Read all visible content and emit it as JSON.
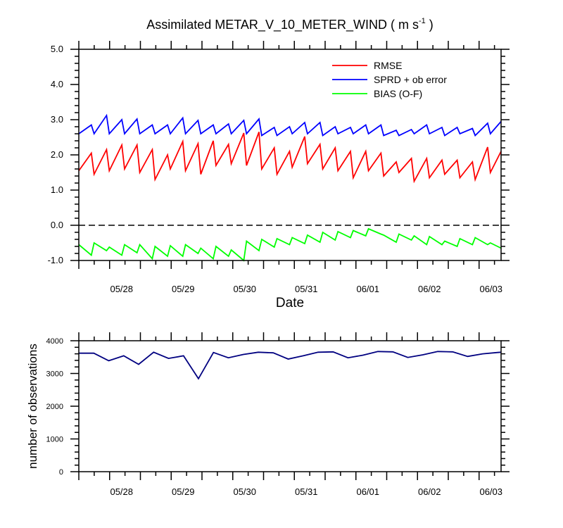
{
  "title": {
    "main": "Assimilated METAR_V_10_METER_WIND ( m s",
    "sup": "-1",
    "close": " )"
  },
  "colors": {
    "rmse": "#ff0000",
    "sprd": "#0000ff",
    "bias": "#00ff00",
    "nobs": "#000080",
    "zero_line": "#000000"
  },
  "chart_data": [
    {
      "type": "line",
      "xlabel": "Date",
      "ylabel": "",
      "ylim": [
        -1.0,
        5.0
      ],
      "xlim": [
        0,
        48
      ],
      "ytick_labels": [
        "5.0",
        "4.0",
        "3.0",
        "2.0",
        "1.0",
        "0.0",
        "-1.0"
      ],
      "ytick_values": [
        5,
        4,
        3,
        2,
        1,
        0,
        -1
      ],
      "xtick_labels": [
        "05/28",
        "05/29",
        "05/30",
        "05/31",
        "06/01",
        "06/02",
        "06/03"
      ],
      "xtick_values": [
        5.5,
        12.5,
        19.5,
        26.5,
        33.5,
        40.5,
        47.5
      ],
      "reference_line": 0.0,
      "legend": [
        "RMSE",
        "SPRD + ob error",
        "BIAS (O-F)"
      ],
      "legend_position": "top-right",
      "series": [
        {
          "name": "RMSE",
          "color_key": "rmse",
          "sawtooth": true,
          "start": [
            1.55,
            1.45,
            1.55,
            1.6,
            1.5,
            1.3,
            1.6,
            1.55,
            1.45,
            1.7,
            1.75,
            1.7,
            1.6,
            1.45,
            1.65,
            1.75,
            1.6,
            1.55,
            1.35,
            1.55,
            1.4,
            1.5,
            1.25,
            1.35,
            1.45,
            1.35,
            1.3,
            1.5
          ],
          "end": [
            2.05,
            2.15,
            2.28,
            2.28,
            2.15,
            2.0,
            2.38,
            2.32,
            2.4,
            2.3,
            2.62,
            2.65,
            2.2,
            2.1,
            2.52,
            2.3,
            2.2,
            2.1,
            2.1,
            2.05,
            1.8,
            1.9,
            1.9,
            1.85,
            1.85,
            1.8,
            2.22,
            2.1
          ]
        },
        {
          "name": "SPRD + ob error",
          "color_key": "sprd",
          "sawtooth": true,
          "start": [
            2.6,
            2.6,
            2.6,
            2.6,
            2.6,
            2.6,
            2.6,
            2.6,
            2.6,
            2.6,
            2.6,
            2.6,
            2.55,
            2.55,
            2.6,
            2.6,
            2.55,
            2.6,
            2.6,
            2.6,
            2.55,
            2.55,
            2.6,
            2.6,
            2.55,
            2.6,
            2.55,
            2.6
          ],
          "end": [
            2.85,
            3.12,
            3.0,
            3.02,
            2.85,
            2.85,
            3.05,
            2.98,
            2.85,
            2.88,
            2.98,
            3.02,
            2.78,
            2.8,
            2.92,
            2.92,
            2.8,
            2.78,
            2.85,
            2.85,
            2.7,
            2.72,
            2.85,
            2.78,
            2.78,
            2.75,
            2.9,
            2.95
          ]
        },
        {
          "name": "BIAS (O-F)",
          "color_key": "bias",
          "sawtooth": true,
          "start": [
            -0.55,
            -0.5,
            -0.62,
            -0.55,
            -0.55,
            -0.6,
            -0.58,
            -0.55,
            -0.65,
            -0.6,
            -0.7,
            -0.45,
            -0.4,
            -0.38,
            -0.35,
            -0.28,
            -0.2,
            -0.18,
            -0.15,
            -0.1,
            -0.28,
            -0.25,
            -0.3,
            -0.32,
            -0.45,
            -0.38,
            -0.35,
            -0.5
          ],
          "end": [
            -0.85,
            -0.72,
            -0.85,
            -0.78,
            -0.95,
            -0.88,
            -0.88,
            -0.8,
            -0.95,
            -0.88,
            -1.0,
            -0.72,
            -0.62,
            -0.55,
            -0.52,
            -0.48,
            -0.42,
            -0.35,
            -0.3,
            -0.25,
            -0.48,
            -0.42,
            -0.55,
            -0.55,
            -0.6,
            -0.55,
            -0.55,
            -0.65
          ]
        }
      ]
    },
    {
      "type": "line",
      "xlabel": "",
      "ylabel": "number of observations",
      "ylim": [
        0,
        4000
      ],
      "xlim": [
        0,
        48
      ],
      "ytick_labels": [
        "4000",
        "3000",
        "2000",
        "1000",
        "0"
      ],
      "ytick_values": [
        4000,
        3000,
        2000,
        1000,
        0
      ],
      "xtick_labels": [
        "05/28",
        "05/29",
        "05/30",
        "05/31",
        "06/01",
        "06/02",
        "06/03"
      ],
      "xtick_values": [
        5.5,
        12.5,
        19.5,
        26.5,
        33.5,
        40.5,
        47.5
      ],
      "series": [
        {
          "name": "number of observations",
          "color_key": "nobs",
          "x": [
            0,
            1.7,
            3.4,
            5.1,
            6.8,
            8.5,
            10.2,
            11.9,
            13.6,
            15.3,
            17.0,
            18.7,
            20.4,
            22.1,
            23.8,
            25.5,
            27.2,
            28.9,
            30.6,
            32.3,
            34.0,
            35.7,
            37.4,
            39.1,
            40.8,
            42.5,
            44.2,
            45.9,
            47.6,
            48
          ],
          "values": [
            3620,
            3620,
            3390,
            3540,
            3280,
            3650,
            3460,
            3540,
            2840,
            3640,
            3480,
            3580,
            3650,
            3630,
            3440,
            3540,
            3650,
            3660,
            3480,
            3560,
            3670,
            3660,
            3490,
            3570,
            3670,
            3660,
            3520,
            3600,
            3640,
            3650
          ]
        }
      ]
    }
  ]
}
